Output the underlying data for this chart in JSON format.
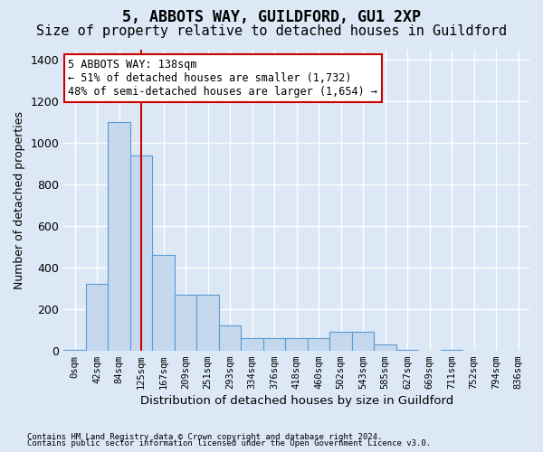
{
  "title": "5, ABBOTS WAY, GUILDFORD, GU1 2XP",
  "subtitle": "Size of property relative to detached houses in Guildford",
  "xlabel": "Distribution of detached houses by size in Guildford",
  "ylabel": "Number of detached properties",
  "footnote1": "Contains HM Land Registry data © Crown copyright and database right 2024.",
  "footnote2": "Contains public sector information licensed under the Open Government Licence v3.0.",
  "bin_labels": [
    "0sqm",
    "42sqm",
    "84sqm",
    "125sqm",
    "167sqm",
    "209sqm",
    "251sqm",
    "293sqm",
    "334sqm",
    "376sqm",
    "418sqm",
    "460sqm",
    "502sqm",
    "543sqm",
    "585sqm",
    "627sqm",
    "669sqm",
    "711sqm",
    "752sqm",
    "794sqm",
    "836sqm"
  ],
  "bar_values": [
    5,
    320,
    1100,
    940,
    460,
    270,
    270,
    120,
    60,
    60,
    60,
    60,
    90,
    90,
    30,
    5,
    0,
    5,
    0,
    0,
    0
  ],
  "bar_color": "#c5d8ed",
  "bar_edge_color": "#5b9bd5",
  "red_line_index": 3,
  "annotation_title": "5 ABBOTS WAY: 138sqm",
  "annotation_line1": "← 51% of detached houses are smaller (1,732)",
  "annotation_line2": "48% of semi-detached houses are larger (1,654) →",
  "annotation_box_color": "#ffffff",
  "annotation_box_edge_color": "#cc0000",
  "red_line_color": "#cc0000",
  "ylim": [
    0,
    1450
  ],
  "yticks": [
    0,
    200,
    400,
    600,
    800,
    1000,
    1200,
    1400
  ],
  "background_color": "#dce8f5",
  "axes_background_color": "#dce8f5",
  "grid_color": "#ffffff",
  "title_fontsize": 12,
  "subtitle_fontsize": 11
}
